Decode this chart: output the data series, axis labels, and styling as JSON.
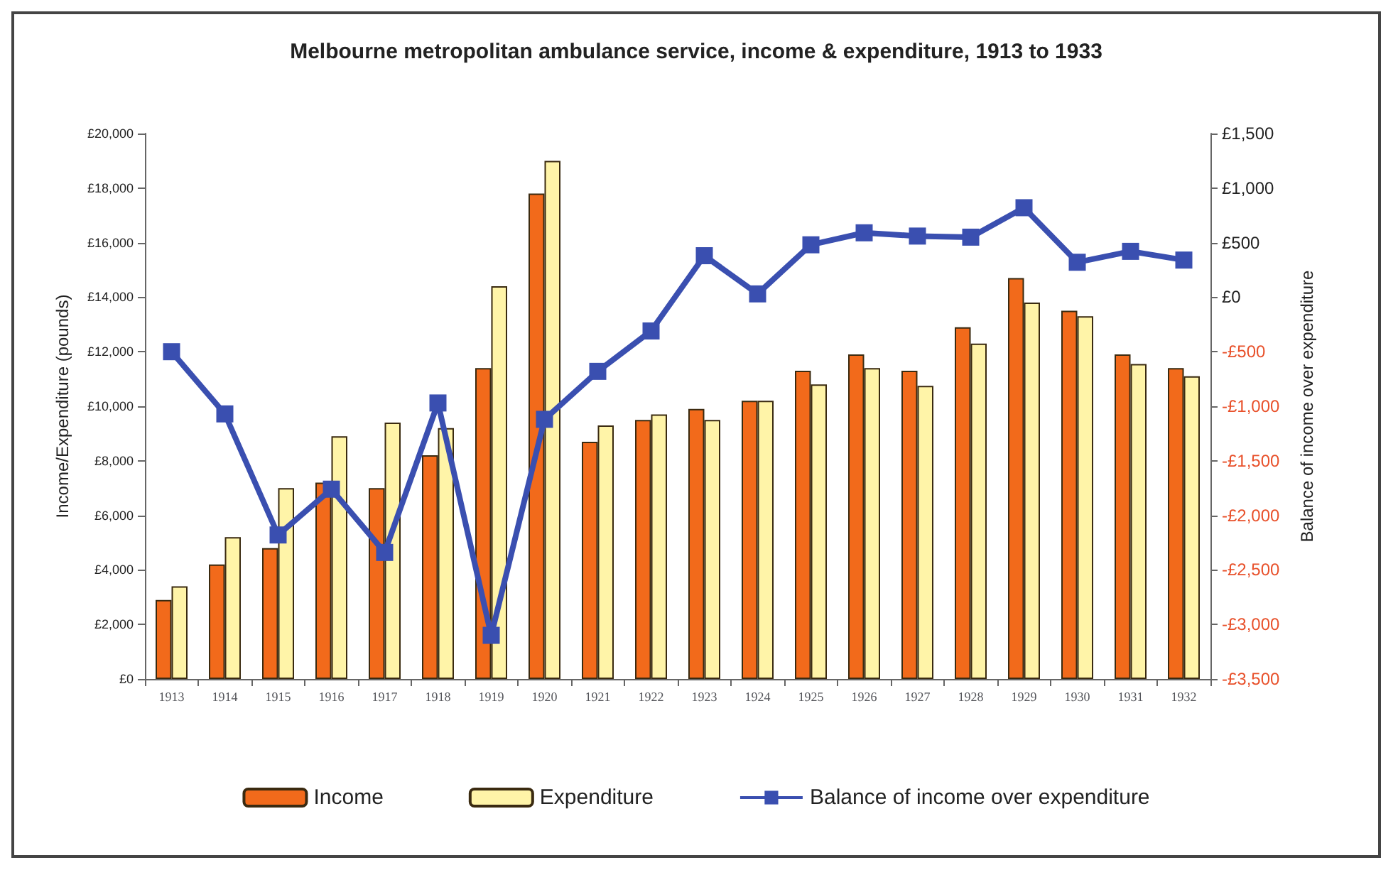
{
  "chart_data": {
    "type": "bar",
    "title": "Melbourne metropolitan ambulance service, income & expenditure, 1913 to 1933",
    "ylabel": "Income/Expenditure (pounds)",
    "y2label": "Balance of income over expenditure",
    "categories": [
      "1913",
      "1914",
      "1915",
      "1916",
      "1917",
      "1918",
      "1919",
      "1920",
      "1921",
      "1922",
      "1923",
      "1924",
      "1925",
      "1926",
      "1927",
      "1928",
      "1929",
      "1930",
      "1931",
      "1932"
    ],
    "series": [
      {
        "name": "Income",
        "color": "#f26a1b",
        "values": [
          2900,
          4200,
          4800,
          7200,
          7000,
          8200,
          11400,
          17800,
          8700,
          9500,
          9900,
          10200,
          11300,
          11900,
          11300,
          12900,
          14700,
          13500,
          11900,
          11400
        ]
      },
      {
        "name": "Expenditure",
        "color": "#fff4a8",
        "values": [
          3400,
          5200,
          7000,
          8900,
          9400,
          9200,
          14400,
          19000,
          9300,
          9700,
          9500,
          10200,
          10800,
          11400,
          10750,
          12300,
          13800,
          13300,
          11550,
          11100
        ]
      },
      {
        "name": "Balance of income over expenditure",
        "type": "line",
        "axis": "y2",
        "color": "#3a4fb0",
        "values": [
          -500,
          -1070,
          -2180,
          -1760,
          -2340,
          -970,
          -3100,
          -1120,
          -680,
          -310,
          380,
          30,
          480,
          590,
          560,
          550,
          820,
          320,
          420,
          340
        ]
      }
    ],
    "ylim": [
      0,
      20000
    ],
    "yticks": [
      {
        "value": 0,
        "label": "£0"
      },
      {
        "value": 2000,
        "label": "£2,000"
      },
      {
        "value": 4000,
        "label": "£4,000"
      },
      {
        "value": 6000,
        "label": "£6,000"
      },
      {
        "value": 8000,
        "label": "£8,000"
      },
      {
        "value": 10000,
        "label": "£10,000"
      },
      {
        "value": 12000,
        "label": "£12,000"
      },
      {
        "value": 14000,
        "label": "£14,000"
      },
      {
        "value": 16000,
        "label": "£16,000"
      },
      {
        "value": 18000,
        "label": "£18,000"
      },
      {
        "value": 20000,
        "label": "£20,000"
      }
    ],
    "y2lim": [
      -3500,
      1500
    ],
    "y2ticks": [
      {
        "value": -3500,
        "label": "-£3,500"
      },
      {
        "value": -3000,
        "label": "-£3,000"
      },
      {
        "value": -2500,
        "label": "-£2,500"
      },
      {
        "value": -2000,
        "label": "-£2,000"
      },
      {
        "value": -1500,
        "label": "-£1,500"
      },
      {
        "value": -1000,
        "label": "-£1,000"
      },
      {
        "value": -500,
        "label": "-£500"
      },
      {
        "value": 0,
        "label": "£0"
      },
      {
        "value": 500,
        "label": "£500"
      },
      {
        "value": 1000,
        "label": "£1,000"
      },
      {
        "value": 1500,
        "label": "£1,500"
      }
    ],
    "grid": false,
    "legend": "bottom",
    "marker": "square",
    "line_style": "solid"
  }
}
